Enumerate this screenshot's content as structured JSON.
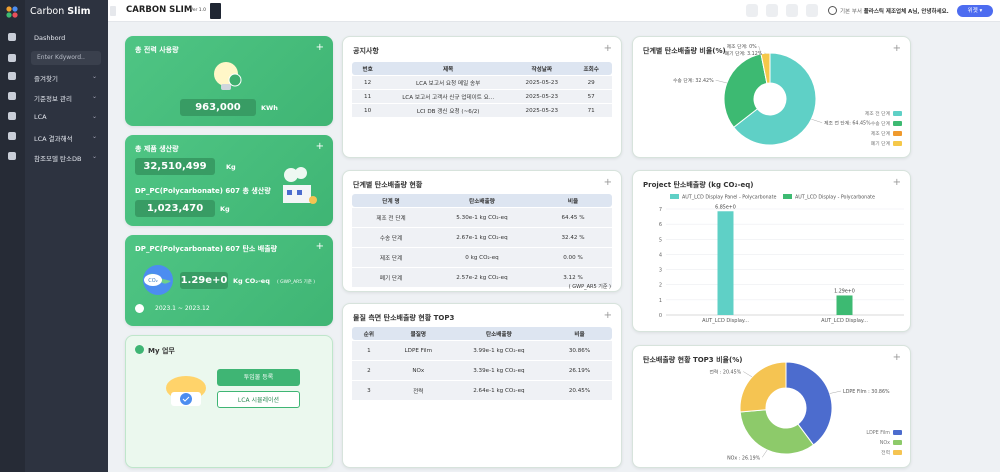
{
  "sidebar": {
    "logo_light": "Carbon",
    "logo_bold": "Slim",
    "dashboard": "Dashbord",
    "search_placeholder": "Enter Kdyword..",
    "menu": [
      "즐겨찾기",
      "기준정보 관리",
      "LCA",
      "LCA 결과해석",
      "참조모델 탄소DB"
    ]
  },
  "header": {
    "title": "CARBON SLIM",
    "version": "Ver 1.0",
    "department": "기본 부서",
    "greeting": "플라스틱 제조업체 A님, 안녕하세요.",
    "widget_button": "위젯"
  },
  "power_card": {
    "title": "총 전력 사용량",
    "value": "963,000",
    "unit": "KWh"
  },
  "production_card": {
    "title": "총 제품 생산량",
    "value": "32,510,499",
    "unit": "Kg",
    "product_title": "DP_PC(Polycarbonate) 607 총 생산량",
    "product_value": "1,023,470",
    "product_unit": "Kg"
  },
  "emission_card": {
    "title": "DP_PC(Polycarbonate) 607 탄소 배출량",
    "value": "1.29e+0",
    "unit": "Kg CO₂-eq",
    "basis": "( GWP_AR5 기준 )",
    "period": "2023.1 ~ 2023.12"
  },
  "my_work": {
    "title": "My 업무",
    "buttons": [
      "투입물 등록",
      "LCA 시뮬레이션"
    ]
  },
  "notice": {
    "title": "공지사항",
    "columns": [
      "번호",
      "제목",
      "작성날짜",
      "조회수"
    ],
    "rows": [
      [
        "12",
        "LCA 보고서 요청 메일 송부",
        "2025-05-23",
        "29"
      ],
      [
        "11",
        "LCA 보고서 고객사 신규 업데이트 요...",
        "2025-05-23",
        "57"
      ],
      [
        "10",
        "LCI DB 갱신 요청 (~6/2)",
        "2025-05-23",
        "71"
      ]
    ]
  },
  "stage_table": {
    "title": "단계별 탄소배출량 현황",
    "columns": [
      "단계 명",
      "탄소배출량",
      "비율"
    ],
    "rows": [
      [
        "제조 전 단계",
        "5.30e-1 kg CO₂-eq",
        "64.45 %"
      ],
      [
        "수송 단계",
        "2.67e-1 kg CO₂-eq",
        "32.42 %"
      ],
      [
        "제조 단계",
        "0 kg CO₂-eq",
        "0.00 %"
      ],
      [
        "폐기 단계",
        "2.57e-2 kg CO₂-eq",
        "3.12 %"
      ]
    ],
    "footnote": "( GWP_AR5 기준 )"
  },
  "material_table": {
    "title": "물질 측면 탄소배출량 현황 TOP3",
    "columns": [
      "순위",
      "물질명",
      "탄소배출량",
      "비율"
    ],
    "rows": [
      [
        "1",
        "LDPE Film",
        "3.99e-1 kg CO₂-eq",
        "30.86%"
      ],
      [
        "2",
        "NOx",
        "3.39e-1 kg CO₂-eq",
        "26.19%"
      ],
      [
        "3",
        "전력",
        "2.64e-1 kg CO₂-eq",
        "20.45%"
      ]
    ]
  },
  "stage_ratio_chart": {
    "type": "pie",
    "title": "단계별 탄소배출량 비율(%)",
    "categories": [
      "제조 전 단계",
      "수송 단계",
      "제조 단계",
      "폐기 단계"
    ],
    "values": [
      64.45,
      32.42,
      0,
      3.12
    ],
    "value_labels": [
      "제조 전 단계: 64.45%",
      "수송 단계: 32.42%",
      "제조 단계: 0%",
      "폐기 단계: 3.12%"
    ],
    "colors": [
      "#5fd0c6",
      "#3dba72",
      "#ef9a2d",
      "#f5c84a"
    ]
  },
  "project_chart": {
    "type": "bar",
    "title": "Project 탄소배출량 (kg CO₂-eq)",
    "categories": [
      "AUT_LCD Display...",
      "AUT_LCD Display..."
    ],
    "series": [
      {
        "name": "AUT_LCD Display Panel - Polycarbonate",
        "color": "#5fd0c6",
        "values": [
          6.85,
          null
        ],
        "value_labels": [
          "6.85e+0",
          null
        ]
      },
      {
        "name": "AUT_LCD Display - Polycarbonate",
        "color": "#3dba72",
        "values": [
          null,
          1.29
        ],
        "value_labels": [
          null,
          "1.29e+0"
        ]
      }
    ],
    "ylim": [
      0,
      7
    ],
    "yticks": [
      0,
      1,
      2,
      3,
      4,
      5,
      6,
      7
    ],
    "grid": true
  },
  "top3_chart": {
    "type": "pie",
    "title": "탄소배출량 현황 TOP3 비율(%)",
    "categories": [
      "LDPE Film",
      "NOx",
      "전력"
    ],
    "values": [
      30.86,
      26.19,
      20.45
    ],
    "value_labels": [
      "LDPE Film : 30.86%",
      "NOx : 26.19%",
      "전력 : 20.45%"
    ],
    "colors": [
      "#4c6cce",
      "#8dca6a",
      "#f5c452"
    ]
  }
}
